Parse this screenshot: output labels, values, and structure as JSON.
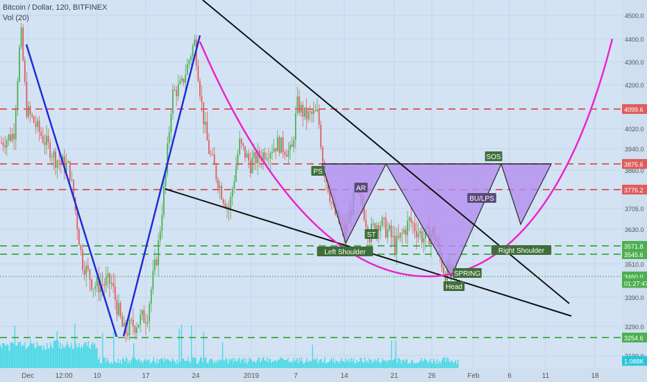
{
  "header": {
    "symbol": "Bitcoin / Dollar, 120, BITFINEX",
    "volume": "Vol (20)"
  },
  "chart_data": {
    "type": "candlestick",
    "ylim": [
      3120,
      4550
    ],
    "y_ticks": [
      3190,
      3290,
      3390,
      3510,
      3630,
      3705,
      3776,
      3860,
      3940,
      4020,
      4200,
      4300,
      4400,
      4500
    ],
    "x_ticks": [
      "Dec",
      "12:00",
      "10",
      "17",
      "24",
      "2019",
      "7",
      "14",
      "21",
      "26",
      "Feb",
      "6",
      "11",
      "18"
    ],
    "horizontal_levels": [
      {
        "value": 4099.6,
        "label": "4099.6",
        "color": "#e05c5c"
      },
      {
        "value": 3875.6,
        "label": "3875.6",
        "color": "#e05c5c"
      },
      {
        "value": 3776.2,
        "label": "3776.2",
        "color": "#e05c5c"
      },
      {
        "value": 3571.8,
        "label": "3571.8",
        "color": "#4caf50"
      },
      {
        "value": 3545.6,
        "label": "3545.6",
        "color": "#4caf50"
      },
      {
        "value": 3254.6,
        "label": "3254.6",
        "color": "#4caf50"
      }
    ],
    "price_badges": [
      {
        "value": 3460.0,
        "label": "3460.0",
        "color": "#4caf50"
      },
      {
        "value": 3438,
        "label": "01:27:47",
        "color": "#4caf50"
      },
      {
        "value": 3165,
        "label": "1.088K",
        "color": "#26c6da"
      }
    ],
    "annotations": [
      "PS",
      "AR",
      "ST",
      "Left Shoulder",
      "SPRING",
      "Head",
      "BU/LPS",
      "SOS",
      "Right Shoulder"
    ],
    "colors": {
      "up_candle": "#4caf50",
      "down_candle": "#e05c5c",
      "trend_blue": "#1f2bd6",
      "trend_black": "#111111",
      "bowl": "#ee22cc",
      "triangle_fill": "#b38cf0",
      "volume": "#26d6e0"
    }
  }
}
